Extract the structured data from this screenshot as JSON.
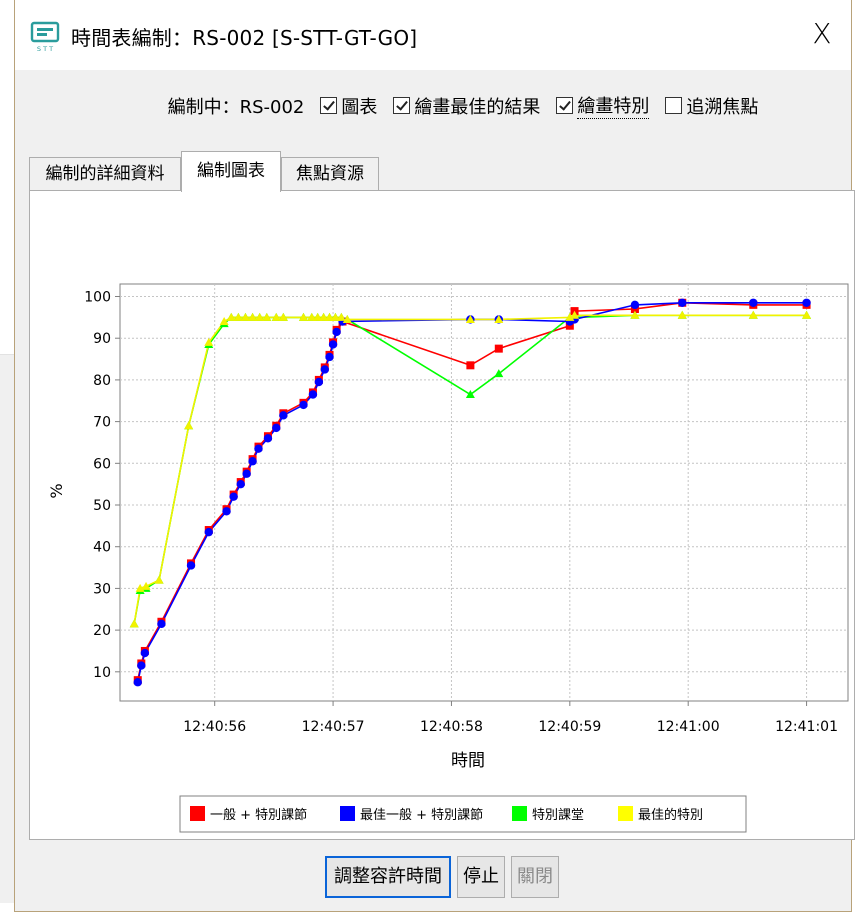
{
  "window": {
    "title": "時間表編制：RS-002 [S-STT-GT-GO]",
    "close_glyph": "X",
    "app_icon": "stt-app-icon"
  },
  "options": {
    "prefix": "編制中：RS-002",
    "items": [
      {
        "label": "圖表",
        "checked": true
      },
      {
        "label": "繪畫最佳的結果",
        "checked": true
      },
      {
        "label": "繪畫特別",
        "checked": true
      },
      {
        "label": "追溯焦點",
        "checked": false
      }
    ]
  },
  "tabs": [
    {
      "label": "編制的詳細資料",
      "active": false
    },
    {
      "label": "編制圖表",
      "active": true
    },
    {
      "label": "焦點資源",
      "active": false
    }
  ],
  "buttons": {
    "adjust": "調整容許時間",
    "stop": "停止",
    "close": "關閉"
  },
  "colors": {
    "red": "#ff0000",
    "blue": "#0000ff",
    "green": "#00ff00",
    "yellow": "#ffff00",
    "accent_border": "#0a64d8"
  },
  "chart_data": {
    "type": "line",
    "title": "",
    "xlabel": "時間",
    "ylabel": "%",
    "x_ticks": [
      "12:40:56",
      "12:40:57",
      "12:40:58",
      "12:40:59",
      "12:41:00",
      "12:41:01"
    ],
    "y_ticks": [
      10,
      20,
      30,
      40,
      50,
      60,
      70,
      80,
      90,
      100
    ],
    "xlim_seconds": [
      55.2,
      61.35
    ],
    "ylim": [
      3,
      103
    ],
    "grid": true,
    "legend": "bottom",
    "series": [
      {
        "name": "一般 + 特別課節",
        "color": "red",
        "marker": "square",
        "points": [
          [
            55.35,
            8
          ],
          [
            55.38,
            12
          ],
          [
            55.41,
            15
          ],
          [
            55.55,
            22
          ],
          [
            55.8,
            36
          ],
          [
            55.95,
            44
          ],
          [
            56.1,
            49
          ],
          [
            56.16,
            52.5
          ],
          [
            56.22,
            55.5
          ],
          [
            56.27,
            58
          ],
          [
            56.32,
            61
          ],
          [
            56.37,
            64
          ],
          [
            56.45,
            66.5
          ],
          [
            56.52,
            69
          ],
          [
            56.58,
            72
          ],
          [
            56.75,
            74.5
          ],
          [
            56.83,
            77
          ],
          [
            56.88,
            80
          ],
          [
            56.93,
            83
          ],
          [
            56.97,
            86
          ],
          [
            57.0,
            89
          ],
          [
            57.03,
            92
          ],
          [
            57.08,
            94
          ],
          [
            58.16,
            83.5
          ],
          [
            58.4,
            87.5
          ],
          [
            59.0,
            93
          ],
          [
            59.04,
            96.5
          ],
          [
            59.55,
            97
          ],
          [
            59.95,
            98.5
          ],
          [
            60.55,
            98
          ],
          [
            61.0,
            98
          ]
        ]
      },
      {
        "name": "最佳一般 + 特別課節",
        "color": "blue",
        "marker": "circle",
        "points": [
          [
            55.35,
            7.5
          ],
          [
            55.38,
            11.5
          ],
          [
            55.41,
            14.5
          ],
          [
            55.55,
            21.5
          ],
          [
            55.8,
            35.5
          ],
          [
            55.95,
            43.5
          ],
          [
            56.1,
            48.5
          ],
          [
            56.16,
            52
          ],
          [
            56.22,
            55
          ],
          [
            56.27,
            57.5
          ],
          [
            56.32,
            60.5
          ],
          [
            56.37,
            63.5
          ],
          [
            56.45,
            66
          ],
          [
            56.52,
            68.5
          ],
          [
            56.58,
            71.5
          ],
          [
            56.75,
            74
          ],
          [
            56.83,
            76.5
          ],
          [
            56.88,
            79.5
          ],
          [
            56.93,
            82.5
          ],
          [
            56.97,
            85.5
          ],
          [
            57.0,
            88.5
          ],
          [
            57.03,
            91.5
          ],
          [
            57.08,
            94
          ],
          [
            58.16,
            94.5
          ],
          [
            58.4,
            94.5
          ],
          [
            59.0,
            94
          ],
          [
            59.04,
            94.5
          ],
          [
            59.55,
            98
          ],
          [
            59.95,
            98.5
          ],
          [
            60.55,
            98.5
          ],
          [
            61.0,
            98.5
          ]
        ]
      },
      {
        "name": "特別課堂",
        "color": "green",
        "marker": "triangle",
        "points": [
          [
            55.32,
            21.5
          ],
          [
            55.37,
            29.5
          ],
          [
            55.42,
            30
          ],
          [
            55.53,
            32
          ],
          [
            55.78,
            69
          ],
          [
            55.95,
            88.5
          ],
          [
            56.08,
            93.5
          ],
          [
            56.14,
            95
          ],
          [
            56.2,
            95
          ],
          [
            56.26,
            95
          ],
          [
            56.32,
            95
          ],
          [
            56.38,
            95
          ],
          [
            56.44,
            95
          ],
          [
            56.52,
            95
          ],
          [
            56.58,
            95
          ],
          [
            56.75,
            95
          ],
          [
            56.82,
            95
          ],
          [
            56.87,
            95
          ],
          [
            56.92,
            95
          ],
          [
            56.97,
            95
          ],
          [
            57.02,
            95
          ],
          [
            57.07,
            95
          ],
          [
            57.12,
            94.5
          ],
          [
            58.16,
            76.5
          ],
          [
            58.4,
            81.5
          ],
          [
            59.0,
            95
          ],
          [
            59.04,
            95
          ],
          [
            59.55,
            95.5
          ],
          [
            59.95,
            95.5
          ],
          [
            60.55,
            95.5
          ],
          [
            61.0,
            95.5
          ]
        ]
      },
      {
        "name": "最佳的特別",
        "color": "yellow",
        "marker": "triangle",
        "points": [
          [
            55.32,
            21.5
          ],
          [
            55.37,
            30
          ],
          [
            55.42,
            30.5
          ],
          [
            55.53,
            32
          ],
          [
            55.78,
            69
          ],
          [
            55.95,
            89
          ],
          [
            56.08,
            94
          ],
          [
            56.14,
            95
          ],
          [
            56.2,
            95
          ],
          [
            56.26,
            95
          ],
          [
            56.32,
            95
          ],
          [
            56.38,
            95
          ],
          [
            56.44,
            95
          ],
          [
            56.52,
            95
          ],
          [
            56.58,
            95
          ],
          [
            56.75,
            95
          ],
          [
            56.82,
            95
          ],
          [
            56.87,
            95
          ],
          [
            56.92,
            95
          ],
          [
            56.97,
            95
          ],
          [
            57.02,
            95
          ],
          [
            57.07,
            95
          ],
          [
            57.12,
            94.5
          ],
          [
            58.16,
            94.5
          ],
          [
            58.4,
            94.5
          ],
          [
            59.0,
            95
          ],
          [
            59.04,
            95.5
          ],
          [
            59.55,
            95.5
          ],
          [
            59.95,
            95.5
          ],
          [
            60.55,
            95.5
          ],
          [
            61.0,
            95.5
          ]
        ]
      }
    ]
  }
}
